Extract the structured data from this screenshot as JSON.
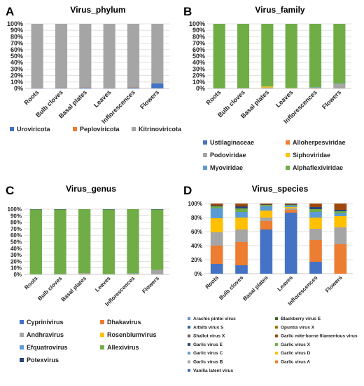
{
  "panels": [
    {
      "letter": "A",
      "chart_data": {
        "type": "bar",
        "stacked": true,
        "percent": true,
        "title": "Virus_phylum",
        "categories": [
          "Roots",
          "Bulb cloves",
          "Basal plates",
          "Leaves",
          "Inflorescences",
          "Flowers"
        ],
        "ylim": [
          0,
          100
        ],
        "ticks": [
          "0%",
          "10%",
          "20%",
          "30%",
          "40%",
          "50%",
          "60%",
          "70%",
          "80%",
          "90%",
          "100%"
        ],
        "series": [
          {
            "name": "Uroviricota",
            "color": "#4472C4",
            "values": [
              0.3,
              0.5,
              1.5,
              0.3,
              1.5,
              8
            ]
          },
          {
            "name": "Peploviricota",
            "color": "#ED7D31",
            "values": [
              0,
              0,
              0.3,
              0,
              0.2,
              0
            ]
          },
          {
            "name": "Kitrinoviricota",
            "color": "#A5A5A5",
            "values": [
              99.7,
              99.5,
              98.2,
              99.7,
              98.3,
              92
            ]
          }
        ],
        "legend_columns": 3
      }
    },
    {
      "letter": "B",
      "chart_data": {
        "type": "bar",
        "stacked": true,
        "percent": true,
        "title": "Virus_family",
        "categories": [
          "Roots",
          "Bulb cloves",
          "Basal plates",
          "Leaves",
          "Inflorescences",
          "Flowers"
        ],
        "ylim": [
          0,
          100
        ],
        "ticks": [
          "0%",
          "10%",
          "20%",
          "30%",
          "40%",
          "50%",
          "60%",
          "70%",
          "80%",
          "90%",
          "100%"
        ],
        "series": [
          {
            "name": "Ustilaginaceae",
            "color": "#4472C4",
            "values": [
              0,
              0,
              0,
              0,
              0,
              0
            ]
          },
          {
            "name": "Alloherpesviridae",
            "color": "#ED7D31",
            "values": [
              0,
              0,
              0.3,
              0,
              0.2,
              0
            ]
          },
          {
            "name": "Podoviridae",
            "color": "#A5A5A5",
            "values": [
              0.3,
              0.5,
              1.2,
              0.3,
              1.2,
              7
            ]
          },
          {
            "name": "Siphoviridae",
            "color": "#FFC000",
            "values": [
              0,
              0,
              1.5,
              0.5,
              0,
              0
            ]
          },
          {
            "name": "Myoviridae",
            "color": "#5B9BD5",
            "values": [
              0,
              0,
              0,
              0,
              0.3,
              0.5
            ]
          },
          {
            "name": "Alphaflexiviridae",
            "color": "#70AD47",
            "values": [
              99.7,
              99.5,
              97,
              99.2,
              98.3,
              92.5
            ]
          }
        ],
        "legend_columns": 2
      }
    },
    {
      "letter": "C",
      "chart_data": {
        "type": "bar",
        "stacked": true,
        "percent": true,
        "title": "Virus_genus",
        "categories": [
          "Roots",
          "Bulb cloves",
          "Basal plates",
          "Leaves",
          "Inflorescences",
          "Flowers"
        ],
        "ylim": [
          0,
          100
        ],
        "ticks": [
          "0%",
          "10%",
          "20%",
          "30%",
          "40%",
          "50%",
          "60%",
          "70%",
          "80%",
          "90%",
          "100%"
        ],
        "series": [
          {
            "name": "Cyprinivirus",
            "color": "#4472C4",
            "values": [
              0,
              0,
              0,
              0,
              0,
              0
            ]
          },
          {
            "name": "Dhakavirus",
            "color": "#ED7D31",
            "values": [
              0,
              0,
              0.3,
              0,
              0.2,
              0
            ]
          },
          {
            "name": "Andhravirus",
            "color": "#A5A5A5",
            "values": [
              0.3,
              0.5,
              1.5,
              0.5,
              1.2,
              7
            ]
          },
          {
            "name": "Rosenblumvirus",
            "color": "#FFC000",
            "values": [
              0,
              0,
              0,
              0,
              0,
              0
            ]
          },
          {
            "name": "Efquatrovirus",
            "color": "#5B9BD5",
            "values": [
              0,
              0,
              0,
              0,
              0.3,
              0
            ]
          },
          {
            "name": "Allexivirus",
            "color": "#70AD47",
            "values": [
              99.4,
              99.0,
              98.2,
              99.3,
              98.3,
              92.5
            ]
          },
          {
            "name": "Potexvirus",
            "color": "#264478",
            "values": [
              0.3,
              0.5,
              0,
              0.2,
              0,
              0.5
            ]
          }
        ],
        "legend_columns": 2
      }
    },
    {
      "letter": "D",
      "chart_data": {
        "type": "bar",
        "stacked": true,
        "percent": true,
        "title": "Virus_species",
        "categories": [
          "Roots",
          "Bulb cloves",
          "Basal plates",
          "Leaves",
          "Inflorescences",
          "Flowers"
        ],
        "ylim": [
          0,
          100
        ],
        "ticks": [
          "0%",
          "20%",
          "40%",
          "60%",
          "80%",
          "100%"
        ],
        "series": [
          {
            "name": "Vanilla latent virus",
            "color": "#4472C4",
            "values": [
              14,
              12,
              63,
              87,
              17,
              0
            ]
          },
          {
            "name": "Garlic virus A",
            "color": "#ED7D31",
            "values": [
              26,
              33,
              12,
              4,
              31,
              42
            ]
          },
          {
            "name": "Garlic virus B",
            "color": "#A5A5A5",
            "values": [
              19,
              18,
              5,
              2,
              16,
              24
            ]
          },
          {
            "name": "Garlic virus D",
            "color": "#FFC000",
            "values": [
              20,
              17,
              10,
              2,
              16,
              16
            ]
          },
          {
            "name": "Garlic virus C",
            "color": "#5B9BD5",
            "values": [
              14,
              8,
              6,
              2,
              8,
              4
            ]
          },
          {
            "name": "Garlic virus X",
            "color": "#70AD47",
            "values": [
              3,
              5,
              2,
              1,
              4,
              3
            ]
          },
          {
            "name": "Garlic virus E",
            "color": "#264478",
            "values": [
              1,
              3,
              0.5,
              0.5,
              3,
              2
            ]
          },
          {
            "name": "Garlic mite-borne filamentous virus",
            "color": "#9E480E",
            "values": [
              3,
              4,
              1.5,
              1,
              5,
              9
            ]
          },
          {
            "name": "Shallot virus X",
            "color": "#636363",
            "values": [
              0,
              0,
              0,
              0,
              0,
              0
            ]
          },
          {
            "name": "Opuntia virus X",
            "color": "#997300",
            "values": [
              0,
              0,
              0,
              0,
              0,
              0
            ]
          },
          {
            "name": "Alfalfa virus S",
            "color": "#255E91",
            "values": [
              0,
              0,
              0,
              0,
              0,
              0
            ]
          },
          {
            "name": "Blackberry virus E",
            "color": "#43682B",
            "values": [
              0,
              0,
              0,
              0.5,
              0,
              0
            ]
          },
          {
            "name": "Arachis pintoi virus",
            "color": "#698ED0",
            "values": [
              0,
              0,
              0,
              0,
              0,
              0
            ]
          }
        ],
        "legend_order": [
          "Arachis pintoi virus",
          "Blackberry virus E",
          "Alfalfa virus S",
          "Opuntia virus X",
          "Shallot virus X",
          "Garlic mite-borne filamentous virus",
          "Garlic virus E",
          "Garlic virus X",
          "Garlic virus C",
          "Garlic virus D",
          "Garlic virus B",
          "Garlic virus A",
          "Vanilla latent virus"
        ],
        "legend_columns": 2
      }
    }
  ]
}
